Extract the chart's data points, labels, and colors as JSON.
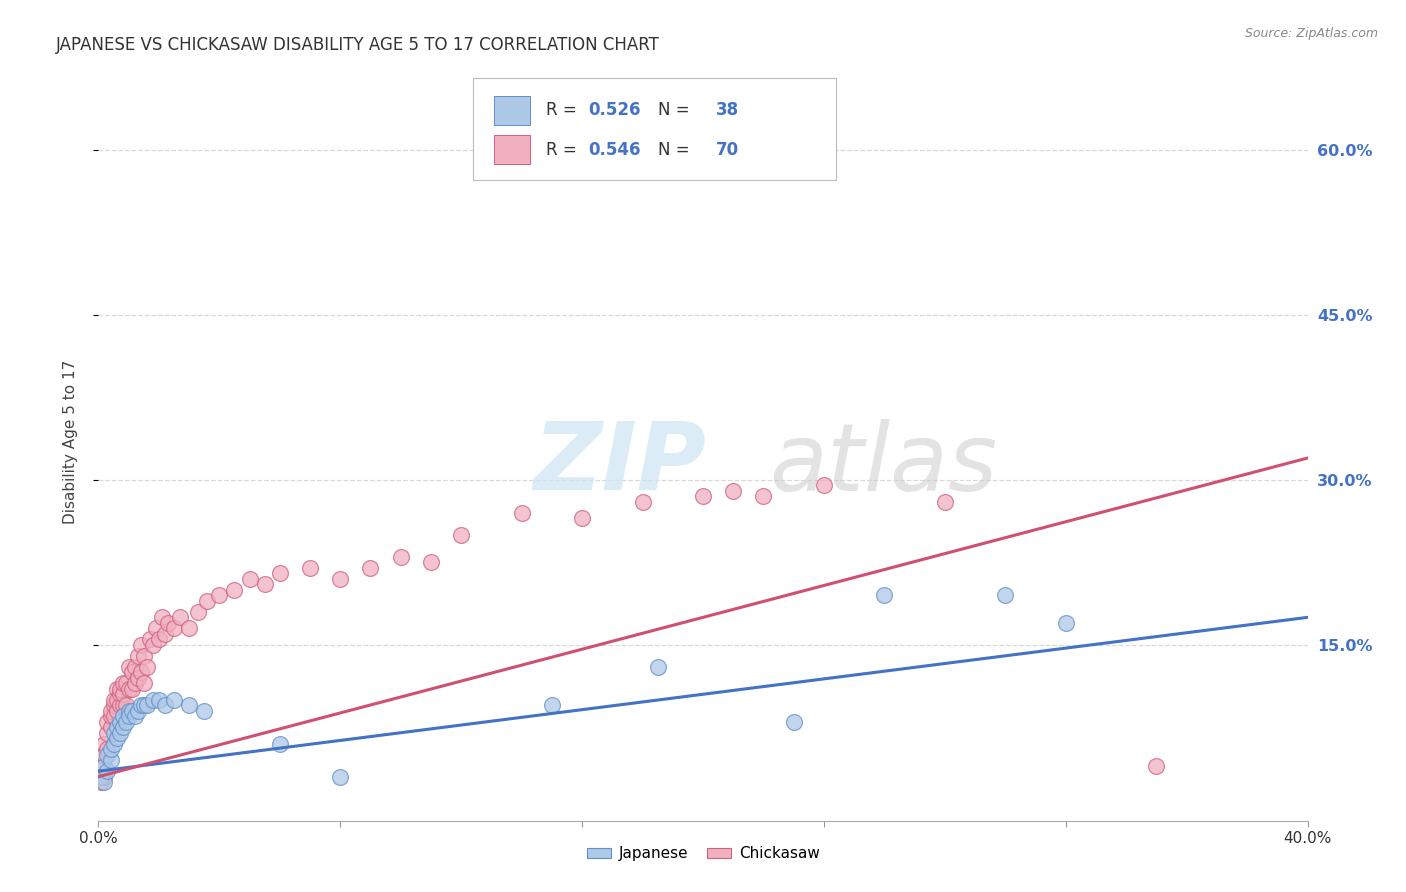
{
  "title": "JAPANESE VS CHICKASAW DISABILITY AGE 5 TO 17 CORRELATION CHART",
  "source": "Source: ZipAtlas.com",
  "ylabel": "Disability Age 5 to 17",
  "xlim": [
    0.0,
    0.4
  ],
  "ylim": [
    -0.01,
    0.68
  ],
  "right_yticks": [
    0.15,
    0.3,
    0.45,
    0.6
  ],
  "right_yticklabels": [
    "15.0%",
    "30.0%",
    "45.0%",
    "60.0%"
  ],
  "grid_color": "#d8d8d8",
  "background_color": "#ffffff",
  "japanese_color": "#aec8e8",
  "japanese_edge_color": "#6090c8",
  "japanese_line_color": "#4472C4",
  "chickasaw_color": "#f0b0c0",
  "chickasaw_edge_color": "#d06080",
  "chickasaw_line_color": "#d05070",
  "japanese_R": 0.526,
  "japanese_N": 38,
  "chickasaw_R": 0.546,
  "chickasaw_N": 70,
  "japanese_scatter_x": [
    0.001,
    0.002,
    0.002,
    0.003,
    0.003,
    0.004,
    0.004,
    0.005,
    0.005,
    0.006,
    0.006,
    0.007,
    0.007,
    0.008,
    0.008,
    0.009,
    0.01,
    0.01,
    0.011,
    0.012,
    0.013,
    0.014,
    0.015,
    0.016,
    0.018,
    0.02,
    0.022,
    0.025,
    0.03,
    0.035,
    0.06,
    0.08,
    0.15,
    0.185,
    0.23,
    0.26,
    0.3,
    0.32
  ],
  "japanese_scatter_y": [
    0.03,
    0.025,
    0.04,
    0.035,
    0.05,
    0.045,
    0.055,
    0.06,
    0.07,
    0.065,
    0.075,
    0.07,
    0.08,
    0.075,
    0.085,
    0.08,
    0.09,
    0.085,
    0.09,
    0.085,
    0.09,
    0.095,
    0.095,
    0.095,
    0.1,
    0.1,
    0.095,
    0.1,
    0.095,
    0.09,
    0.06,
    0.03,
    0.095,
    0.13,
    0.08,
    0.195,
    0.195,
    0.17
  ],
  "chickasaw_scatter_x": [
    0.001,
    0.001,
    0.002,
    0.002,
    0.002,
    0.003,
    0.003,
    0.003,
    0.004,
    0.004,
    0.004,
    0.005,
    0.005,
    0.005,
    0.006,
    0.006,
    0.006,
    0.007,
    0.007,
    0.007,
    0.008,
    0.008,
    0.008,
    0.009,
    0.009,
    0.01,
    0.01,
    0.011,
    0.011,
    0.012,
    0.012,
    0.013,
    0.013,
    0.014,
    0.014,
    0.015,
    0.015,
    0.016,
    0.017,
    0.018,
    0.019,
    0.02,
    0.021,
    0.022,
    0.023,
    0.025,
    0.027,
    0.03,
    0.033,
    0.036,
    0.04,
    0.045,
    0.05,
    0.055,
    0.06,
    0.07,
    0.08,
    0.09,
    0.1,
    0.11,
    0.12,
    0.14,
    0.16,
    0.18,
    0.2,
    0.21,
    0.22,
    0.24,
    0.28,
    0.35
  ],
  "chickasaw_scatter_y": [
    0.025,
    0.04,
    0.03,
    0.05,
    0.06,
    0.055,
    0.07,
    0.08,
    0.075,
    0.085,
    0.09,
    0.085,
    0.095,
    0.1,
    0.09,
    0.1,
    0.11,
    0.095,
    0.105,
    0.11,
    0.095,
    0.105,
    0.115,
    0.095,
    0.115,
    0.11,
    0.13,
    0.11,
    0.125,
    0.115,
    0.13,
    0.12,
    0.14,
    0.125,
    0.15,
    0.115,
    0.14,
    0.13,
    0.155,
    0.15,
    0.165,
    0.155,
    0.175,
    0.16,
    0.17,
    0.165,
    0.175,
    0.165,
    0.18,
    0.19,
    0.195,
    0.2,
    0.21,
    0.205,
    0.215,
    0.22,
    0.21,
    0.22,
    0.23,
    0.225,
    0.25,
    0.27,
    0.265,
    0.28,
    0.285,
    0.29,
    0.285,
    0.295,
    0.28,
    0.04
  ],
  "trend_japanese_x0": 0.0,
  "trend_japanese_y0": 0.035,
  "trend_japanese_x1": 0.4,
  "trend_japanese_y1": 0.175,
  "trend_chickasaw_x0": 0.0,
  "trend_chickasaw_y0": 0.03,
  "trend_chickasaw_x1": 0.4,
  "trend_chickasaw_y1": 0.32
}
